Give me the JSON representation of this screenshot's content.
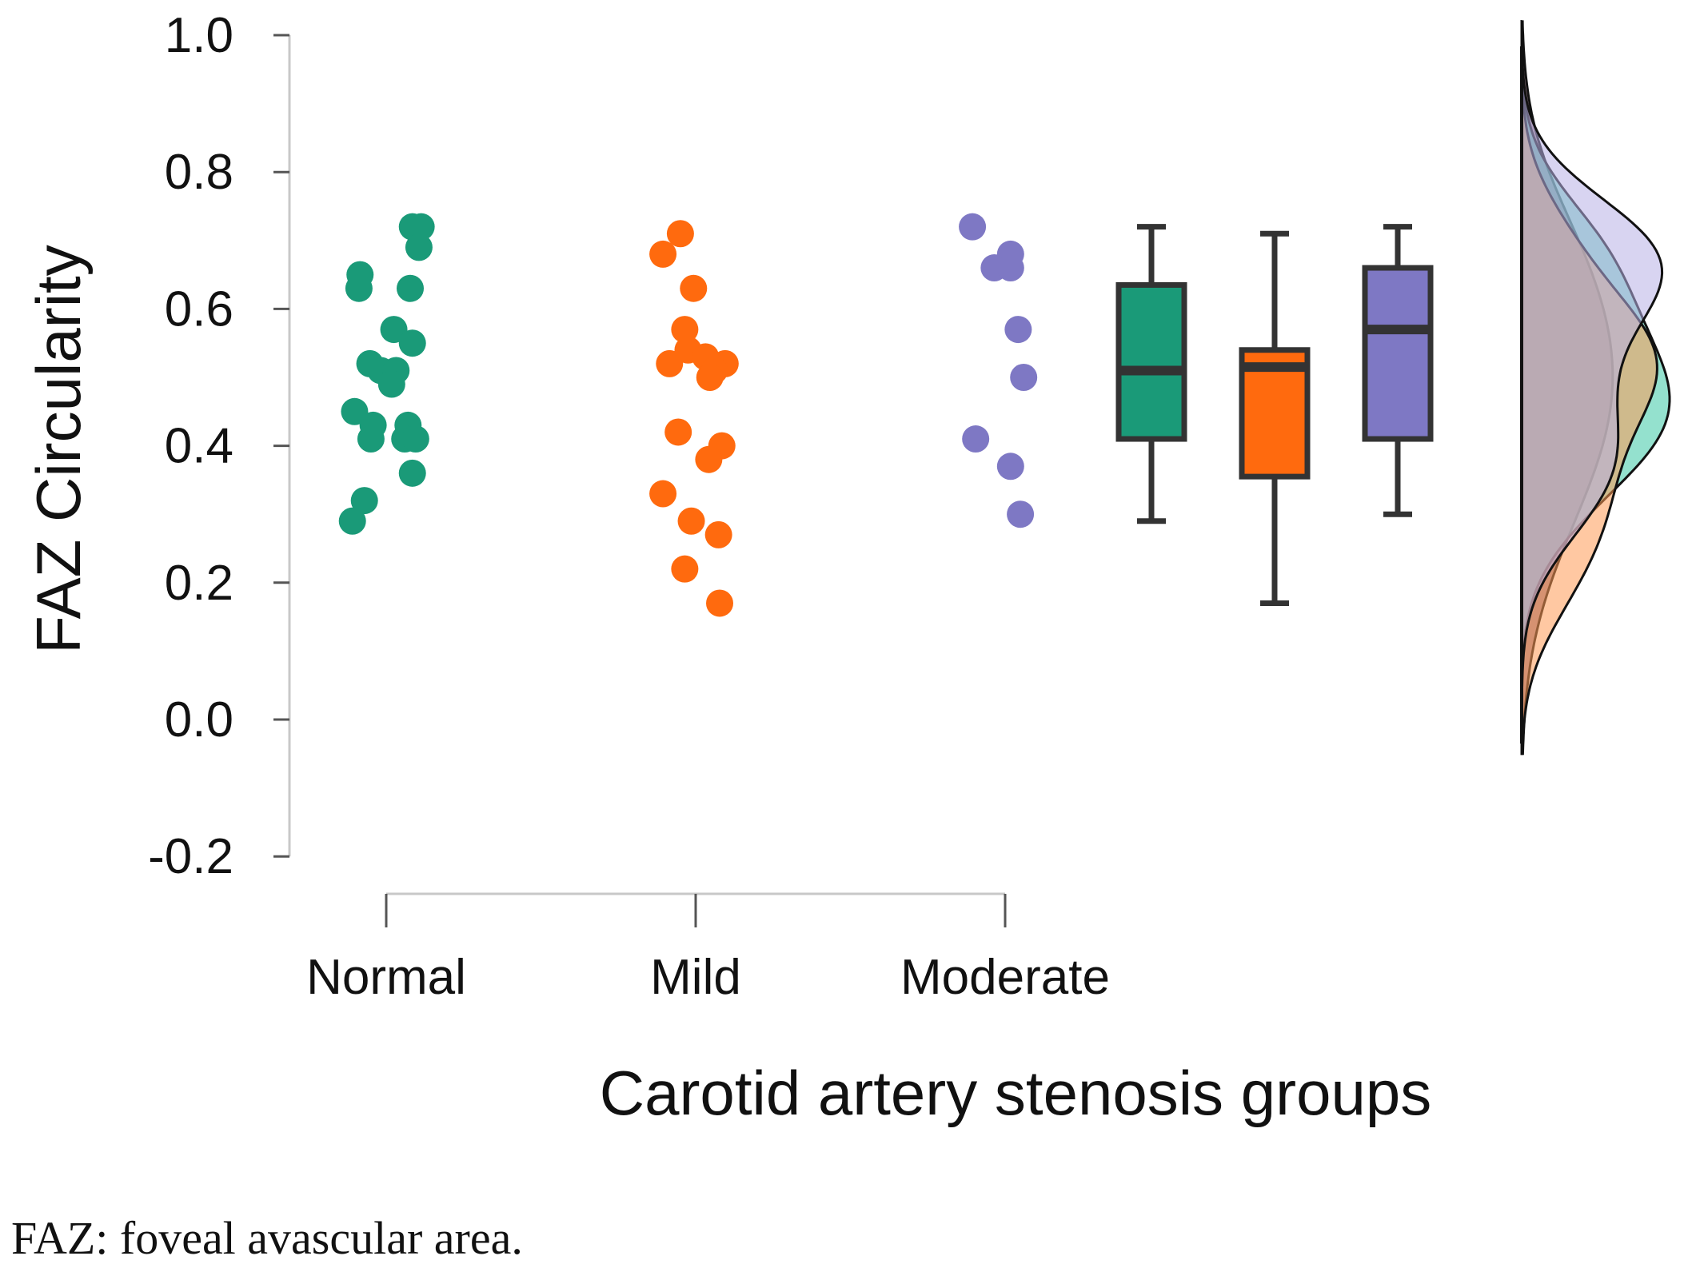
{
  "chart_data": {
    "type": "raincloud",
    "title": "",
    "ylabel": "FAZ Circularity",
    "xlabel": "Carotid artery stenosis groups",
    "ylim": [
      -0.2,
      1.0
    ],
    "yticks": [
      -0.2,
      0.0,
      0.2,
      0.4,
      0.6,
      0.8,
      1.0
    ],
    "ytick_labels": [
      "-0.2",
      "0.0",
      "0.2",
      "0.4",
      "0.6",
      "0.8",
      "1.0"
    ],
    "categories": [
      "Normal",
      "Mild",
      "Moderate"
    ],
    "series": [
      {
        "name": "Normal",
        "color": "#1a9a78",
        "density_color": "#3cc9a6",
        "points": [
          {
            "j": -0.24,
            "v": 0.65
          },
          {
            "j": -0.25,
            "v": 0.63
          },
          {
            "j": 0.24,
            "v": 0.72
          },
          {
            "j": 0.32,
            "v": 0.72
          },
          {
            "j": 0.3,
            "v": 0.69
          },
          {
            "j": 0.22,
            "v": 0.63
          },
          {
            "j": 0.07,
            "v": 0.57
          },
          {
            "j": 0.24,
            "v": 0.55
          },
          {
            "j": -0.15,
            "v": 0.52
          },
          {
            "j": -0.05,
            "v": 0.51
          },
          {
            "j": 0.09,
            "v": 0.51
          },
          {
            "j": 0.05,
            "v": 0.49
          },
          {
            "j": -0.29,
            "v": 0.45
          },
          {
            "j": -0.12,
            "v": 0.43
          },
          {
            "j": 0.2,
            "v": 0.43
          },
          {
            "j": -0.14,
            "v": 0.41
          },
          {
            "j": 0.17,
            "v": 0.41
          },
          {
            "j": 0.27,
            "v": 0.41
          },
          {
            "j": 0.24,
            "v": 0.36
          },
          {
            "j": -0.2,
            "v": 0.32
          },
          {
            "j": -0.31,
            "v": 0.29
          }
        ],
        "box": {
          "min": 0.29,
          "q1": 0.41,
          "median": 0.51,
          "q3": 0.635,
          "max": 0.72
        }
      },
      {
        "name": "Mild",
        "color": "#ff6a0e",
        "density_color": "#ff9a55",
        "points": [
          {
            "j": -0.14,
            "v": 0.71
          },
          {
            "j": -0.3,
            "v": 0.68
          },
          {
            "j": -0.02,
            "v": 0.63
          },
          {
            "j": -0.1,
            "v": 0.57
          },
          {
            "j": -0.07,
            "v": 0.54
          },
          {
            "j": 0.09,
            "v": 0.53
          },
          {
            "j": -0.24,
            "v": 0.52
          },
          {
            "j": 0.27,
            "v": 0.52
          },
          {
            "j": 0.17,
            "v": 0.51
          },
          {
            "j": 0.13,
            "v": 0.5
          },
          {
            "j": -0.16,
            "v": 0.42
          },
          {
            "j": 0.24,
            "v": 0.4
          },
          {
            "j": 0.12,
            "v": 0.38
          },
          {
            "j": -0.3,
            "v": 0.33
          },
          {
            "j": -0.04,
            "v": 0.29
          },
          {
            "j": 0.21,
            "v": 0.27
          },
          {
            "j": -0.1,
            "v": 0.22
          },
          {
            "j": 0.22,
            "v": 0.17
          }
        ],
        "box": {
          "min": 0.17,
          "q1": 0.355,
          "median": 0.515,
          "q3": 0.54,
          "max": 0.71
        }
      },
      {
        "name": "Moderate",
        "color": "#7e78c4",
        "density_color": "#b8b0e6",
        "points": [
          {
            "j": -0.3,
            "v": 0.72
          },
          {
            "j": 0.05,
            "v": 0.68
          },
          {
            "j": -0.1,
            "v": 0.66
          },
          {
            "j": 0.05,
            "v": 0.66
          },
          {
            "j": 0.12,
            "v": 0.57
          },
          {
            "j": 0.17,
            "v": 0.5
          },
          {
            "j": -0.27,
            "v": 0.41
          },
          {
            "j": 0.05,
            "v": 0.37
          },
          {
            "j": 0.14,
            "v": 0.3
          }
        ],
        "box": {
          "min": 0.3,
          "q1": 0.41,
          "median": 0.57,
          "q3": 0.66,
          "max": 0.72
        }
      }
    ],
    "combined_density_color": "#9a7b86"
  },
  "caption": "FAZ: foveal avascular area."
}
